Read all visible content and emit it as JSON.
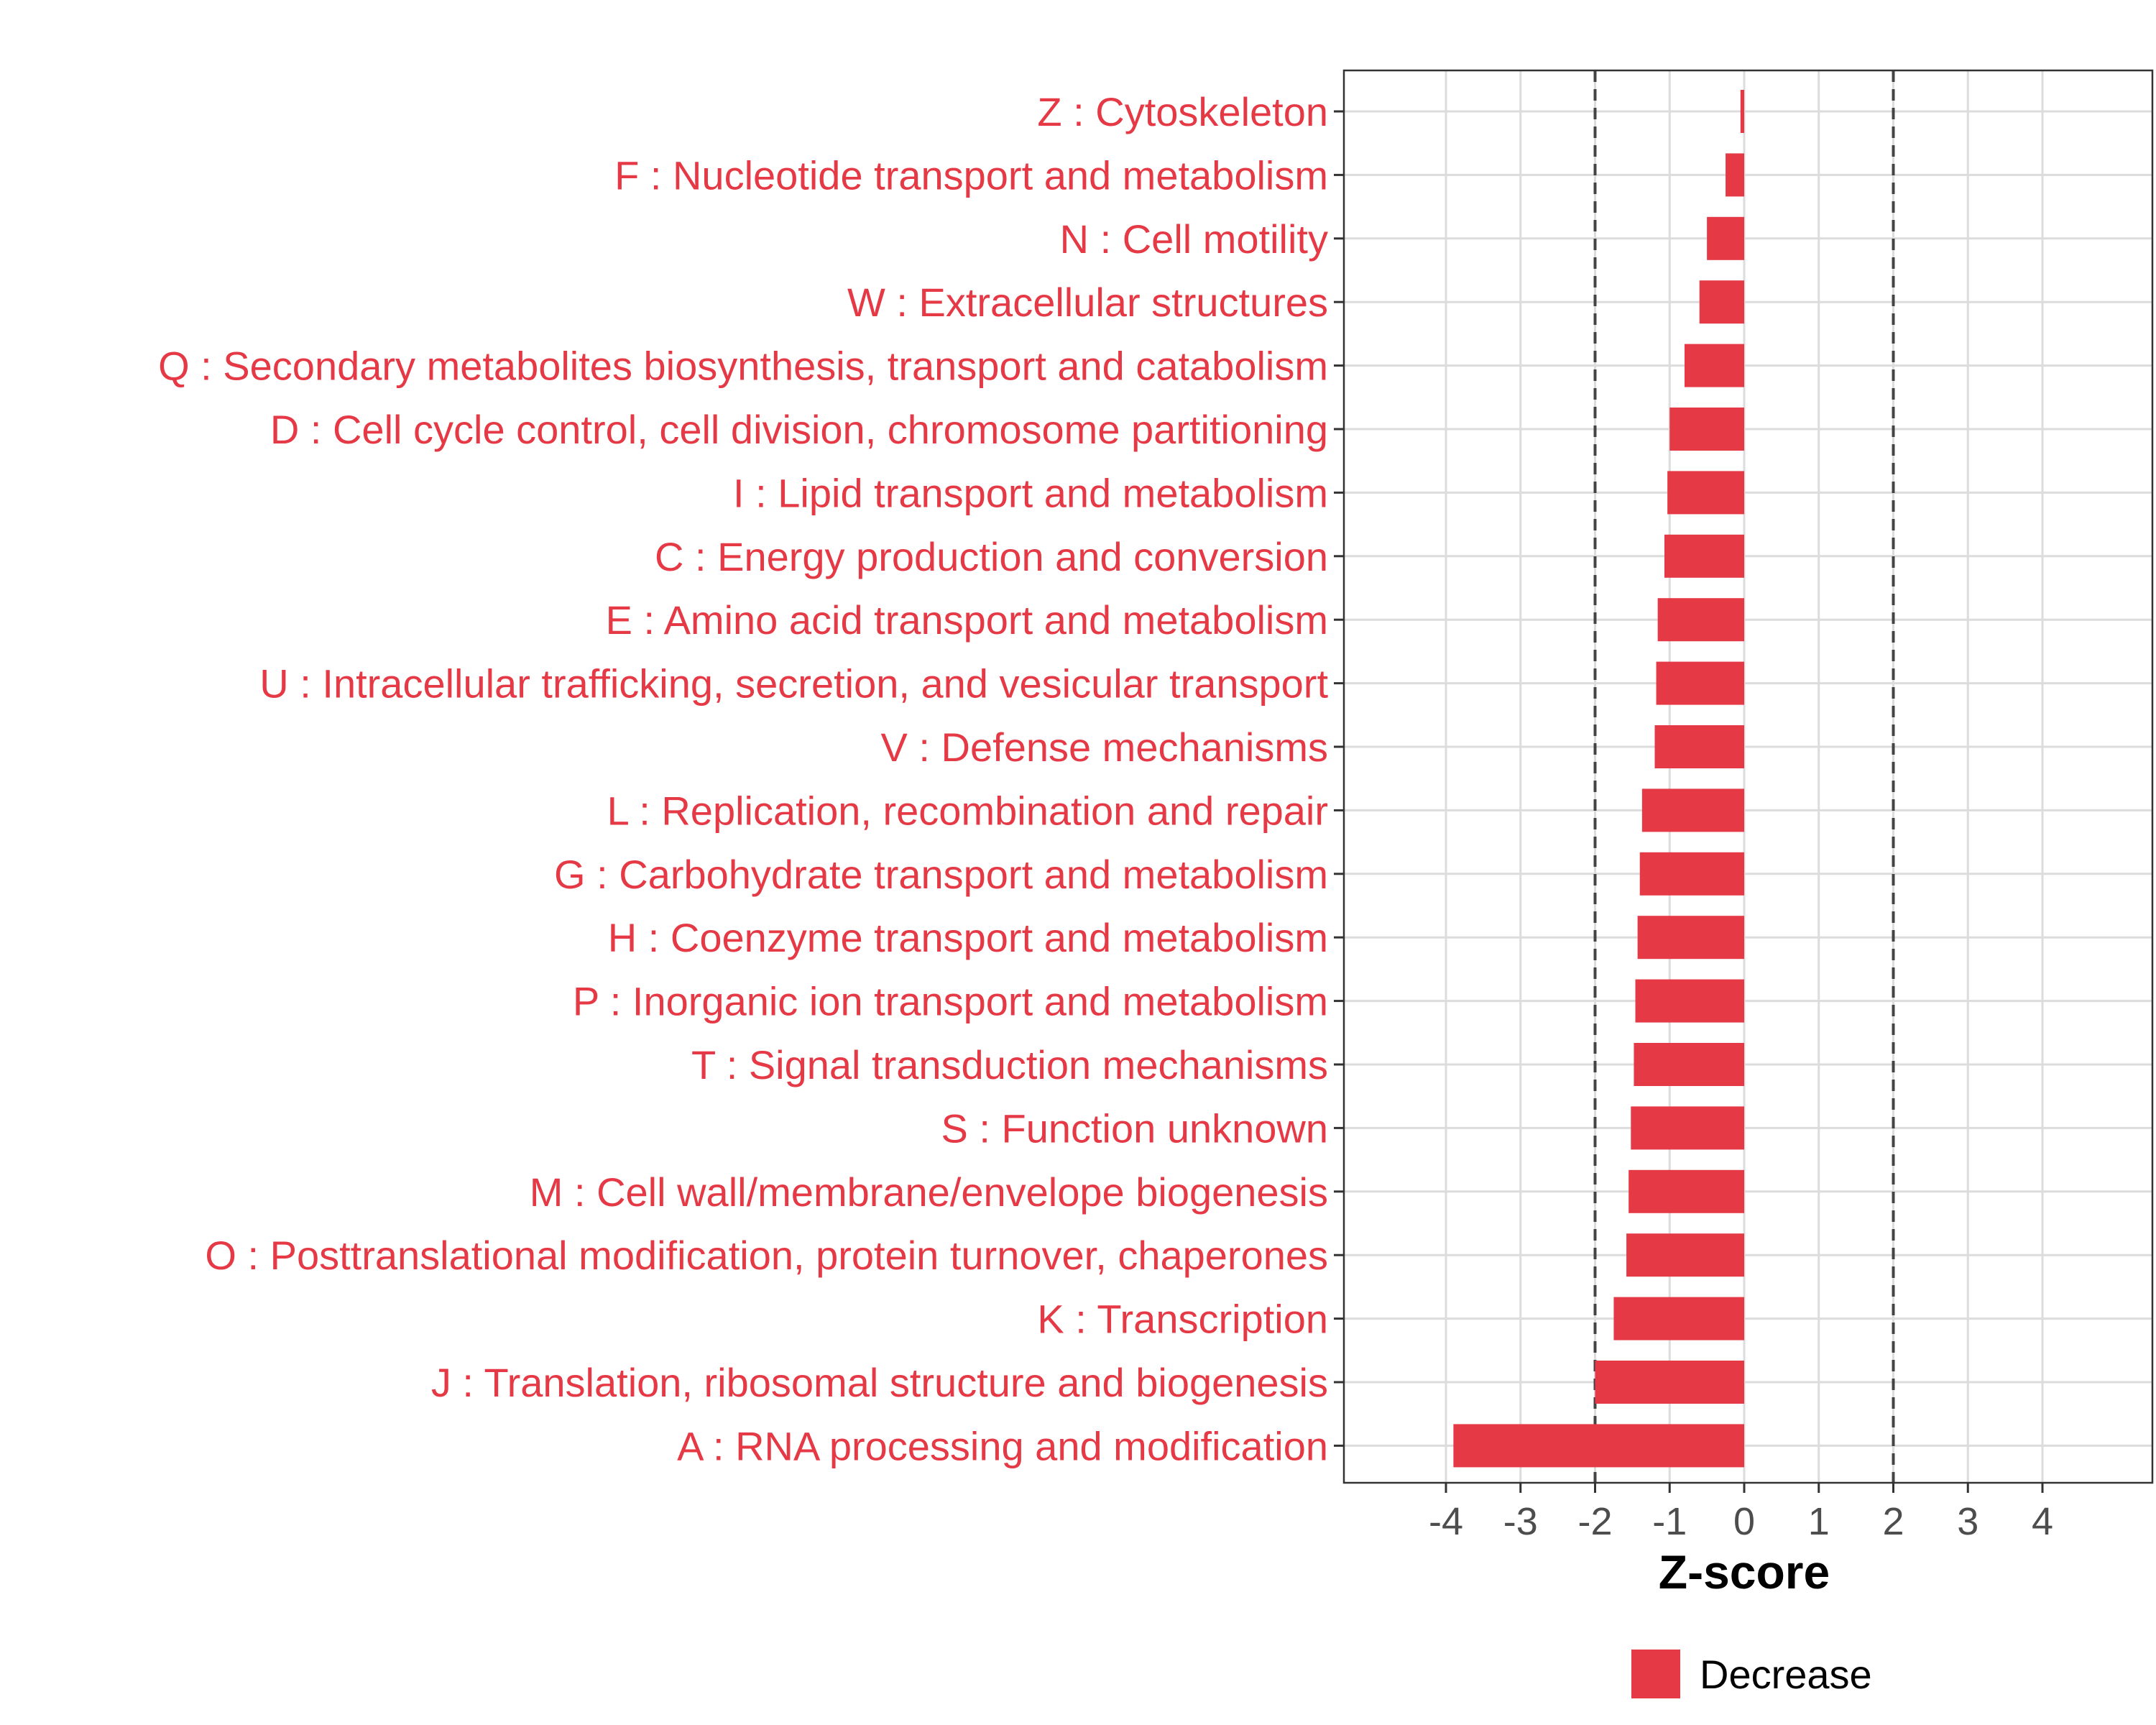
{
  "chart_data": {
    "type": "bar",
    "orientation": "horizontal",
    "xlabel": "Z-score",
    "ylabel": "",
    "xlim": [
      -5,
      5.5
    ],
    "xticks": [
      -4,
      -3,
      -2,
      -1,
      0,
      1,
      2,
      3,
      4
    ],
    "xtick_labels": [
      "-4",
      "-3",
      "-2",
      "-1",
      "0",
      "1",
      "2",
      "3",
      "4"
    ],
    "reference_lines": [
      -2,
      2
    ],
    "grid": true,
    "categories": [
      "Z : Cytoskeleton",
      "F : Nucleotide transport and metabolism",
      "N : Cell motility",
      "W : Extracellular structures",
      "Q : Secondary metabolites biosynthesis, transport and catabolism",
      "D : Cell cycle control, cell division, chromosome partitioning",
      "I : Lipid transport and metabolism",
      "C : Energy production and conversion",
      "E : Amino acid transport and metabolism",
      "U : Intracellular trafficking, secretion, and vesicular transport",
      "V : Defense mechanisms",
      "L : Replication, recombination and repair",
      "G : Carbohydrate transport and metabolism",
      "H : Coenzyme transport and metabolism",
      "P : Inorganic ion transport and metabolism",
      "T : Signal transduction mechanisms",
      "S : Function unknown",
      "M : Cell wall/membrane/envelope biogenesis",
      "O : Posttranslational modification, protein turnover, chaperones",
      "K : Transcription",
      "J : Translation, ribosomal structure and biogenesis",
      "A : RNA processing and modification"
    ],
    "series": [
      {
        "name": "Decrease",
        "color": "#e63946",
        "values": [
          -0.05,
          -0.25,
          -0.5,
          -0.6,
          -0.8,
          -1.0,
          -1.03,
          -1.07,
          -1.16,
          -1.18,
          -1.2,
          -1.37,
          -1.4,
          -1.43,
          -1.46,
          -1.48,
          -1.52,
          -1.55,
          -1.58,
          -1.75,
          -2.0,
          -3.9
        ]
      }
    ],
    "legend": {
      "position": "bottom",
      "entries": [
        "Decrease"
      ]
    },
    "label_color": "#e63946"
  }
}
